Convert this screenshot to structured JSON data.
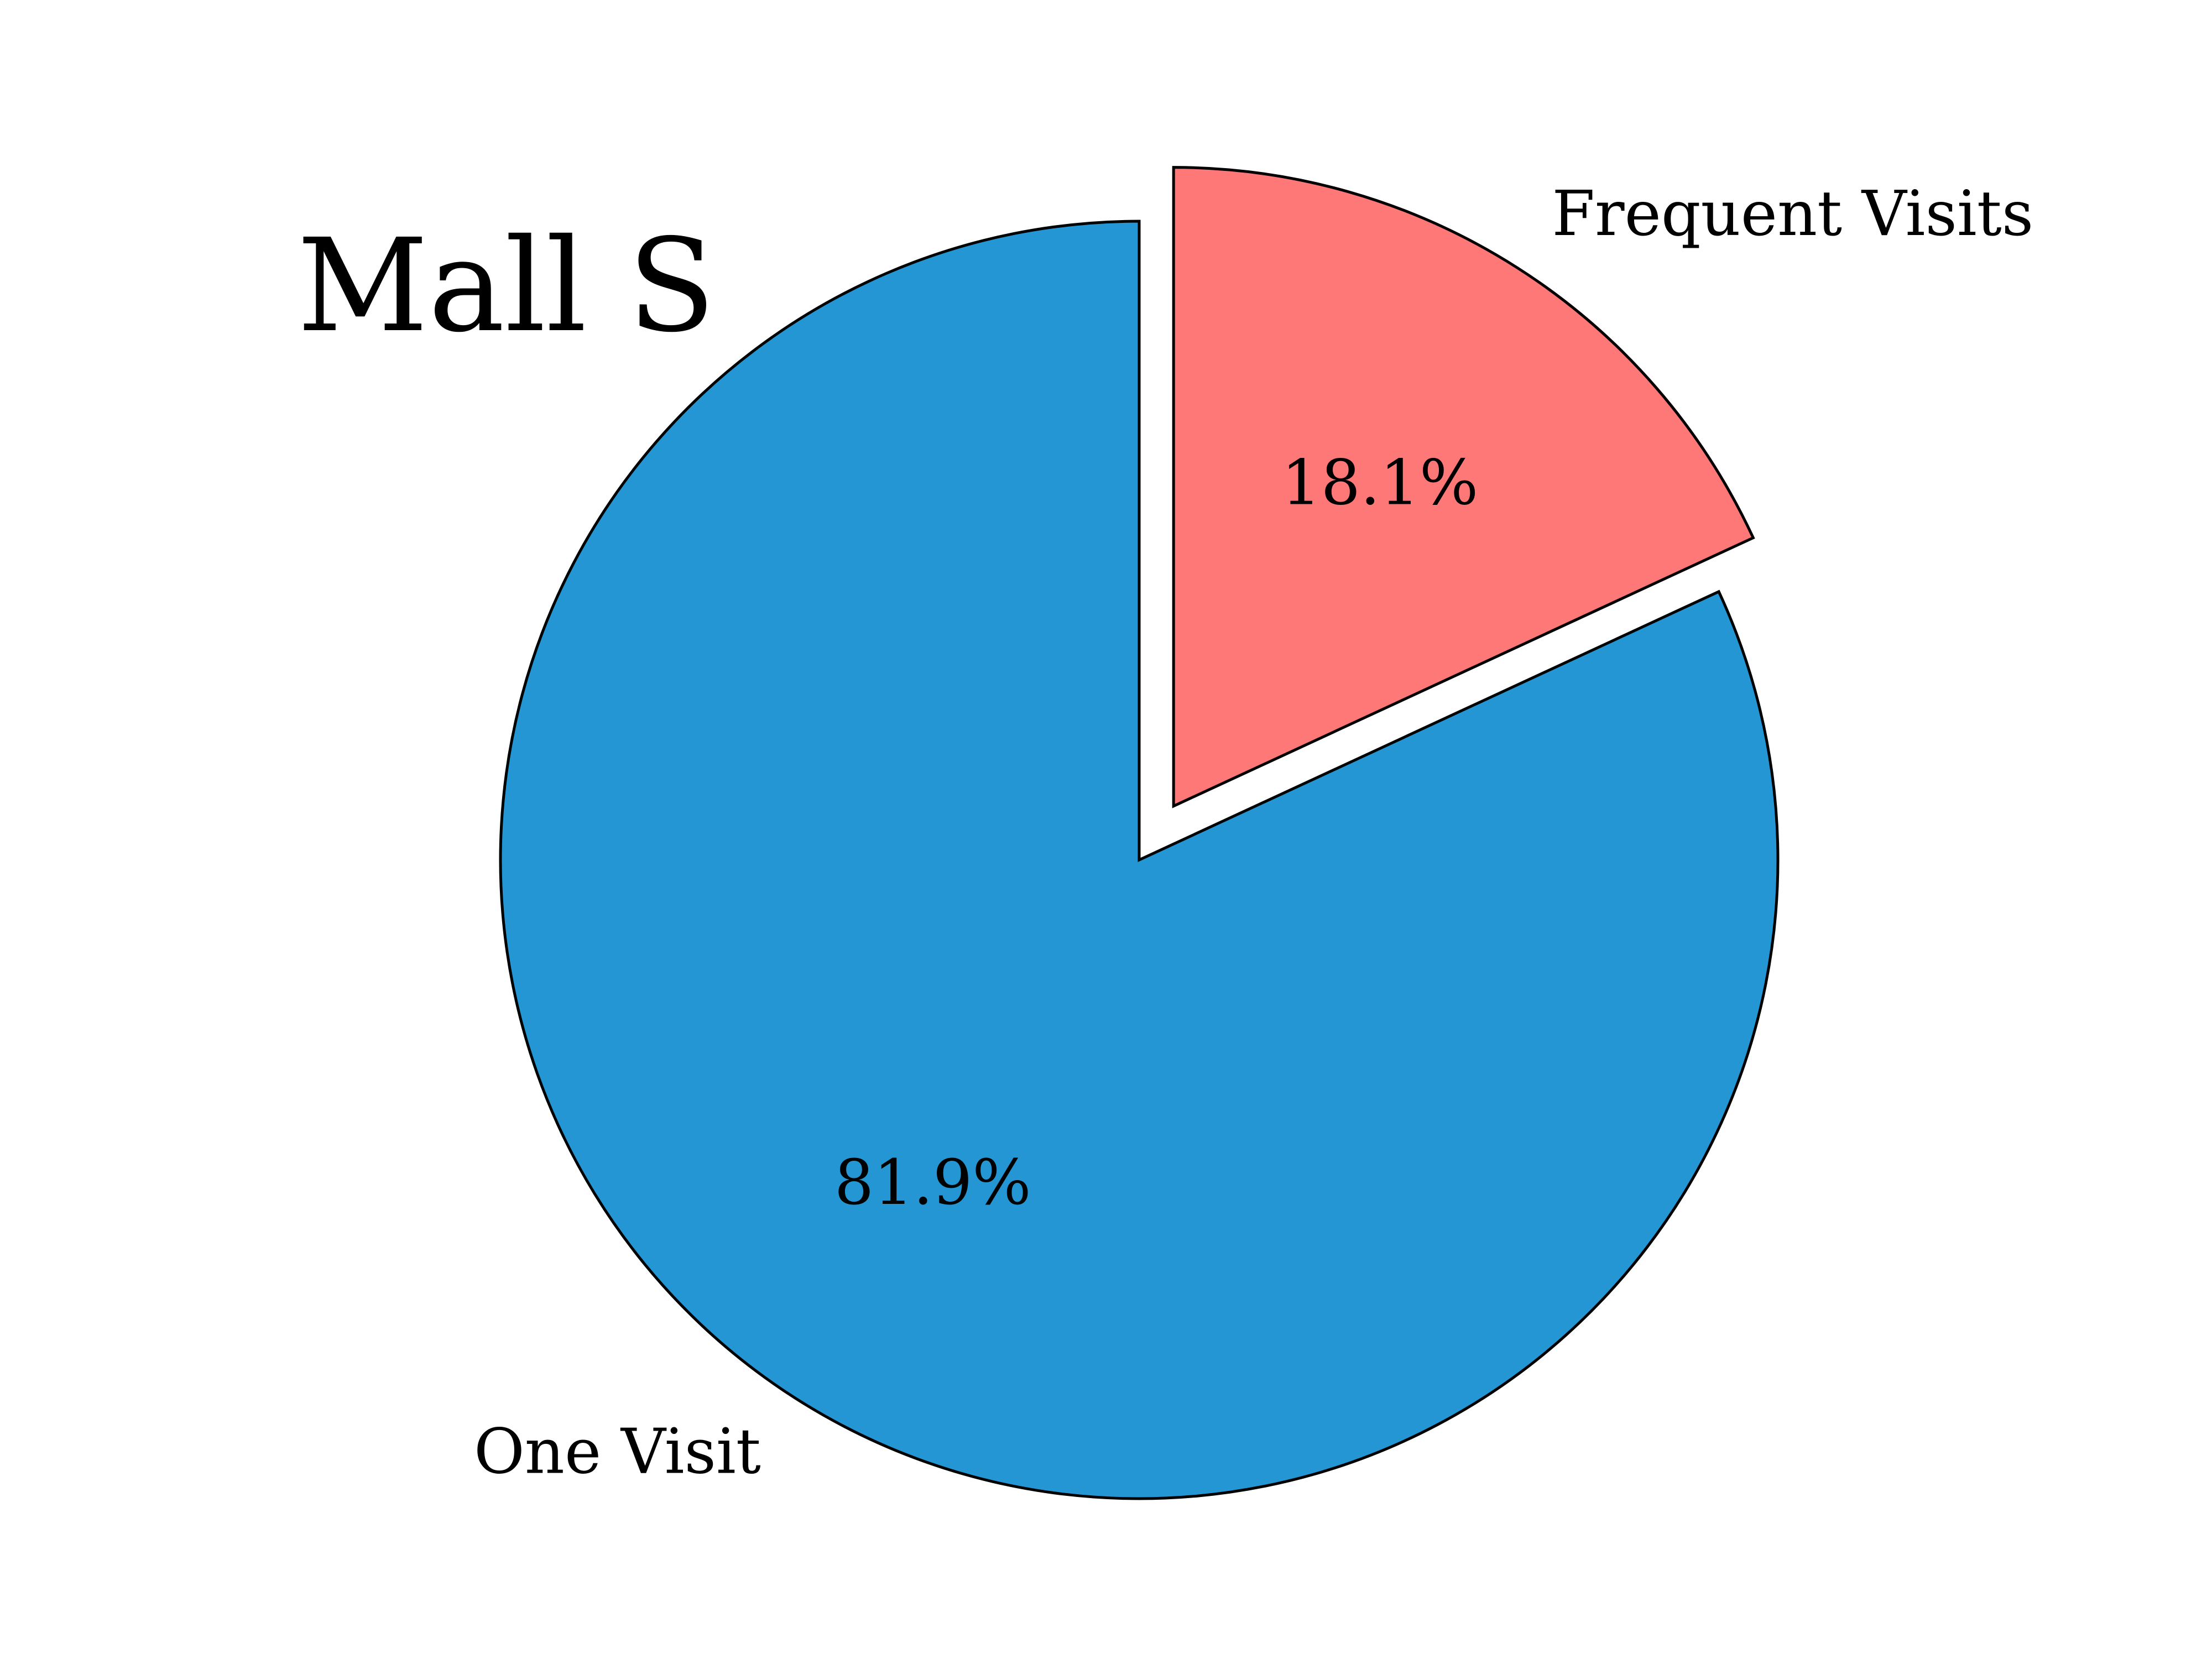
{
  "chart_data": {
    "type": "pie",
    "title": "Mall S",
    "start_angle_deg": 90,
    "counterclockwise": false,
    "slices": [
      {
        "label": "Frequent Visits",
        "value": 18.1,
        "pct_label": "18.1%",
        "color": "#FF7878",
        "exploded": true
      },
      {
        "label": "One Visit",
        "value": 81.9,
        "pct_label": "81.9%",
        "color": "#2596D4",
        "exploded": false
      }
    ],
    "edge_color": "#000000",
    "legend": "none"
  }
}
